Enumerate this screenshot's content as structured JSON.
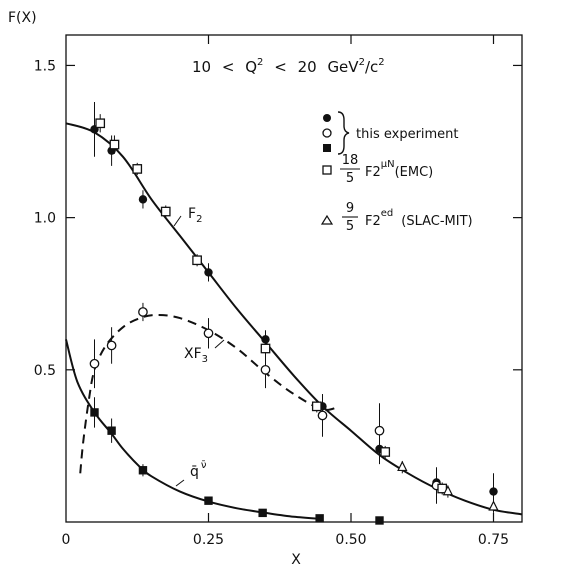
{
  "chart_data": {
    "type": "scatter",
    "ylabel": "F(X)",
    "xlabel": "X",
    "xlim": [
      0,
      0.8
    ],
    "ylim": [
      0,
      1.6
    ],
    "xticks": [
      0,
      0.25,
      0.5,
      0.75
    ],
    "xtick_labels": [
      "0",
      "0.25",
      "0.50",
      "0.75"
    ],
    "yticks": [
      0.5,
      1.0,
      1.5
    ],
    "ytick_labels": [
      "0.5",
      "1.0",
      "1.5"
    ],
    "grid": false,
    "legend_position": "right",
    "condition": {
      "low": "10",
      "lt1": "<",
      "q": "Q",
      "q_exp": "2",
      "lt2": "<",
      "high": "20",
      "unit": "GeV",
      "unit_exp1": "2",
      "unit_mid": "/c",
      "unit_exp2": "2"
    },
    "legend": {
      "this_experiment": "this experiment",
      "emc": {
        "num": "18",
        "den": "5",
        "label": "F2",
        "sup": "μN",
        "note": "(EMC)"
      },
      "slac": {
        "num": "9",
        "den": "5",
        "label": "F2",
        "sup": "ed",
        "note": "(SLAC-MIT)"
      }
    },
    "curve_labels": {
      "f2": {
        "main": "F",
        "sub": "2"
      },
      "xf3": {
        "main": "XF",
        "sub": "3"
      },
      "qbar": {
        "main": "q̄",
        "sup": "ν̄"
      }
    },
    "series": [
      {
        "marker": "filled-circle",
        "x": [
          0.05,
          0.08,
          0.135,
          0.25,
          0.35,
          0.45,
          0.55,
          0.65,
          0.75
        ],
        "y": [
          1.29,
          1.22,
          1.06,
          0.82,
          0.6,
          0.38,
          0.24,
          0.13,
          0.1
        ],
        "err": [
          0.09,
          0.05,
          0.03,
          0.03,
          0.03,
          0.04,
          0.05,
          0.04,
          0.06
        ]
      },
      {
        "marker": "open-circle",
        "x": [
          0.05,
          0.08,
          0.135,
          0.25,
          0.35,
          0.45,
          0.55,
          0.65
        ],
        "y": [
          0.52,
          0.58,
          0.69,
          0.62,
          0.5,
          0.35,
          0.3,
          0.12
        ],
        "err": [
          0.08,
          0.06,
          0.03,
          0.05,
          0.06,
          0.07,
          0.09,
          0.06
        ]
      },
      {
        "marker": "filled-square",
        "x": [
          0.05,
          0.08,
          0.135,
          0.25,
          0.345,
          0.445,
          0.55
        ],
        "y": [
          0.36,
          0.3,
          0.17,
          0.07,
          0.03,
          0.012,
          0.005
        ],
        "err": [
          0.05,
          0.04,
          0.02,
          0.01,
          0.0,
          0.0,
          0.0
        ]
      },
      {
        "marker": "open-square",
        "x": [
          0.06,
          0.085,
          0.125,
          0.175,
          0.23,
          0.35,
          0.44,
          0.56,
          0.66
        ],
        "y": [
          1.31,
          1.24,
          1.16,
          1.02,
          0.86,
          0.57,
          0.38,
          0.23,
          0.11
        ],
        "err": [
          0.03,
          0.03,
          0.02,
          0.02,
          0.02,
          0.02,
          0.02,
          0.02,
          0.02
        ]
      },
      {
        "marker": "open-triangle",
        "x": [
          0.59,
          0.67,
          0.75
        ],
        "y": [
          0.18,
          0.1,
          0.05
        ],
        "err": [
          0.02,
          0.02,
          0.02
        ]
      }
    ],
    "curves": [
      {
        "id": "f2",
        "style": "solid",
        "x": [
          0.0,
          0.05,
          0.1,
          0.15,
          0.2,
          0.25,
          0.3,
          0.35,
          0.4,
          0.45,
          0.5,
          0.55,
          0.6,
          0.65,
          0.7,
          0.75,
          0.8
        ],
        "y": [
          1.31,
          1.28,
          1.2,
          1.06,
          0.94,
          0.82,
          0.7,
          0.59,
          0.48,
          0.38,
          0.3,
          0.22,
          0.16,
          0.11,
          0.07,
          0.04,
          0.025
        ]
      },
      {
        "id": "xf3",
        "style": "dashed",
        "x": [
          0.025,
          0.03,
          0.04,
          0.05,
          0.07,
          0.1,
          0.13,
          0.16,
          0.2,
          0.25,
          0.3,
          0.35,
          0.4,
          0.45,
          0.48
        ],
        "y": [
          0.16,
          0.26,
          0.4,
          0.5,
          0.58,
          0.64,
          0.67,
          0.68,
          0.67,
          0.63,
          0.57,
          0.49,
          0.42,
          0.37,
          0.38
        ]
      },
      {
        "id": "qbar",
        "style": "solid",
        "x": [
          0.0,
          0.02,
          0.05,
          0.08,
          0.1,
          0.13,
          0.15,
          0.2,
          0.25,
          0.3,
          0.35,
          0.4,
          0.45
        ],
        "y": [
          0.6,
          0.46,
          0.36,
          0.29,
          0.24,
          0.18,
          0.15,
          0.1,
          0.067,
          0.045,
          0.03,
          0.017,
          0.01
        ]
      }
    ]
  }
}
